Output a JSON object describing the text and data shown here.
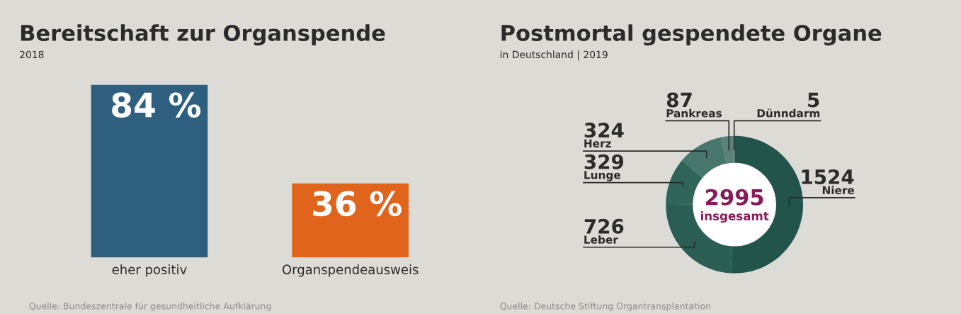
{
  "chart_data": [
    {
      "type": "bar",
      "title": "Bereitschaft zur Organspende",
      "subtitle": "2018",
      "categories": [
        "eher positiv",
        "Organspendeausweis"
      ],
      "values": [
        84,
        36
      ],
      "colors": [
        "#2f5f7f",
        "#e0641c"
      ],
      "value_labels": [
        "84 %",
        "36 %"
      ],
      "annotations": [
        "Quelle: Bundeszentrale für gesundheitliche Aufklärung"
      ]
    },
    {
      "type": "donut",
      "title": "Postmortal gespendete Organe",
      "subtitle": "in Deutschland | 2019",
      "categories": [
        "Niere",
        "Leber",
        "Lunge",
        "Herz",
        "Pankreas",
        "Dünndarm"
      ],
      "values": [
        1524,
        726,
        329,
        324,
        87,
        5
      ],
      "colors": [
        "#22544c",
        "#2a5e54",
        "#2f6459",
        "#47766c",
        "#5a8178",
        "#6f918a"
      ],
      "data_labels": true,
      "annotations": [
        "2995",
        "insgesamt",
        "Quelle: Deutsche Stiftung Organtransplantation"
      ]
    }
  ]
}
